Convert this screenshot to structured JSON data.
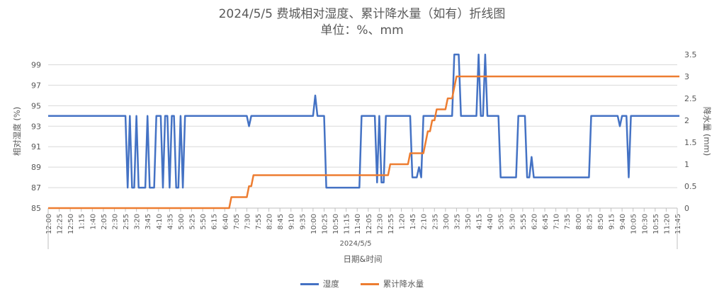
{
  "title": "2024/5/5 费城相对湿度、累计降水量（如有）折线图",
  "subtitle": "单位：%、mm",
  "legend": {
    "humidity": "湿度",
    "rain": "累计降水量"
  },
  "colors": {
    "humidity": "#4472C4",
    "rain": "#ED7D31",
    "grid": "#D9D9D9",
    "axis": "#BFBFBF",
    "text": "#595959"
  },
  "chart_data": {
    "type": "line",
    "xlabel": "日期&时间",
    "date_label": "2024/5/5",
    "ylabel_left": "相对湿度 (%)",
    "ylabel_right": "降水量 (mm)",
    "ylim_left": [
      85,
      100
    ],
    "yticks_left": [
      85,
      87,
      89,
      91,
      93,
      95,
      97,
      99
    ],
    "ylim_right": [
      0,
      3.5
    ],
    "yticks_right": [
      0,
      0.5,
      1,
      1.5,
      2,
      2.5,
      3,
      3.5
    ],
    "x_tick_labels": [
      "12:00",
      "12:25",
      "12:50",
      "1:15",
      "1:40",
      "2:05",
      "2:30",
      "2:55",
      "3:20",
      "3:45",
      "4:10",
      "4:35",
      "5:00",
      "5:25",
      "5:50",
      "6:15",
      "6:40",
      "7:05",
      "7:30",
      "7:55",
      "8:20",
      "8:45",
      "9:10",
      "9:35",
      "10:00",
      "10:25",
      "10:50",
      "11:15",
      "11:40",
      "12:05",
      "12:30",
      "12:55",
      "1:20",
      "1:45",
      "2:10",
      "2:35",
      "3:00",
      "3:25",
      "3:50",
      "4:15",
      "4:40",
      "5:05",
      "5:30",
      "5:55",
      "6:20",
      "6:45",
      "7:10",
      "7:35",
      "8:00",
      "8:25",
      "8:50",
      "9:15",
      "9:40",
      "10:05",
      "10:30",
      "10:55",
      "11:20",
      "11:45"
    ],
    "x_step_minutes": 5,
    "grid": true,
    "legend_position": "bottom",
    "series": [
      {
        "name": "湿度",
        "axis": "left",
        "points": [
          [
            0,
            94
          ],
          [
            35,
            94
          ],
          [
            36,
            87
          ],
          [
            37,
            94
          ],
          [
            38,
            87
          ],
          [
            39,
            87
          ],
          [
            40,
            94
          ],
          [
            41,
            87
          ],
          [
            42,
            87
          ],
          [
            43,
            87
          ],
          [
            44,
            87
          ],
          [
            45,
            94
          ],
          [
            46,
            87
          ],
          [
            47,
            87
          ],
          [
            48,
            87
          ],
          [
            49,
            94
          ],
          [
            50,
            94
          ],
          [
            51,
            94
          ],
          [
            52,
            87
          ],
          [
            53,
            94
          ],
          [
            54,
            94
          ],
          [
            55,
            87
          ],
          [
            56,
            94
          ],
          [
            57,
            94
          ],
          [
            58,
            87
          ],
          [
            59,
            87
          ],
          [
            60,
            94
          ],
          [
            61,
            87
          ],
          [
            62,
            94
          ],
          [
            63,
            94
          ],
          [
            64,
            94
          ],
          [
            90,
            94
          ],
          [
            91,
            93
          ],
          [
            92,
            94
          ],
          [
            93,
            94
          ],
          [
            120,
            94
          ],
          [
            121,
            96
          ],
          [
            122,
            94
          ],
          [
            123,
            94
          ],
          [
            124,
            94
          ],
          [
            125,
            94
          ],
          [
            126,
            87
          ],
          [
            127,
            87
          ],
          [
            128,
            87
          ],
          [
            129,
            87
          ],
          [
            130,
            87
          ],
          [
            131,
            87
          ],
          [
            140,
            87
          ],
          [
            141,
            87
          ],
          [
            142,
            94
          ],
          [
            143,
            94
          ],
          [
            148,
            94
          ],
          [
            149,
            87.5
          ],
          [
            150,
            94
          ],
          [
            151,
            87.5
          ],
          [
            152,
            87.5
          ],
          [
            153,
            94
          ],
          [
            154,
            94
          ],
          [
            162,
            94
          ],
          [
            163,
            94
          ],
          [
            164,
            94
          ],
          [
            165,
            88
          ],
          [
            166,
            88
          ],
          [
            167,
            88
          ],
          [
            168,
            89
          ],
          [
            169,
            88
          ],
          [
            170,
            94
          ],
          [
            171,
            94
          ],
          [
            180,
            94
          ],
          [
            181,
            94
          ],
          [
            182,
            94
          ],
          [
            183,
            94
          ],
          [
            184,
            100
          ],
          [
            185,
            100
          ],
          [
            186,
            100
          ],
          [
            187,
            94
          ],
          [
            188,
            94
          ],
          [
            189,
            94
          ],
          [
            190,
            94
          ],
          [
            191,
            94
          ],
          [
            192,
            94
          ],
          [
            193,
            94
          ],
          [
            194,
            94
          ],
          [
            195,
            100
          ],
          [
            196,
            94
          ],
          [
            197,
            94
          ],
          [
            198,
            100
          ],
          [
            199,
            94
          ],
          [
            200,
            94
          ],
          [
            201,
            94
          ],
          [
            202,
            94
          ],
          [
            203,
            94
          ],
          [
            204,
            94
          ],
          [
            205,
            88
          ],
          [
            206,
            88
          ],
          [
            207,
            88
          ],
          [
            208,
            88
          ],
          [
            209,
            88
          ],
          [
            210,
            88
          ],
          [
            211,
            88
          ],
          [
            212,
            88
          ],
          [
            213,
            94
          ],
          [
            214,
            94
          ],
          [
            215,
            94
          ],
          [
            216,
            94
          ],
          [
            217,
            88
          ],
          [
            218,
            88
          ],
          [
            219,
            90
          ],
          [
            220,
            88
          ],
          [
            221,
            88
          ],
          [
            222,
            88
          ],
          [
            230,
            88
          ],
          [
            240,
            88
          ],
          [
            245,
            88
          ],
          [
            246,
            94
          ],
          [
            247,
            94
          ],
          [
            255,
            94
          ],
          [
            258,
            94
          ],
          [
            259,
            93
          ],
          [
            260,
            94
          ],
          [
            261,
            94
          ],
          [
            262,
            94
          ],
          [
            263,
            88
          ],
          [
            264,
            94
          ],
          [
            265,
            94
          ],
          [
            275,
            94
          ],
          [
            286,
            94
          ]
        ]
      },
      {
        "name": "累计降水量",
        "axis": "right",
        "points": [
          [
            0,
            0
          ],
          [
            82,
            0
          ],
          [
            83,
            0.25
          ],
          [
            84,
            0.25
          ],
          [
            90,
            0.25
          ],
          [
            91,
            0.5
          ],
          [
            92,
            0.5
          ],
          [
            93,
            0.75
          ],
          [
            94,
            0.75
          ],
          [
            126,
            0.75
          ],
          [
            127,
            0.75
          ],
          [
            128,
            0.75
          ],
          [
            129,
            0.75
          ],
          [
            130,
            0.75
          ],
          [
            131,
            0.75
          ],
          [
            140,
            0.75
          ],
          [
            150,
            0.75
          ],
          [
            154,
            0.75
          ],
          [
            155,
            1.0
          ],
          [
            156,
            1.0
          ],
          [
            162,
            1.0
          ],
          [
            163,
            1.0
          ],
          [
            164,
            1.25
          ],
          [
            165,
            1.25
          ],
          [
            170,
            1.25
          ],
          [
            171,
            1.5
          ],
          [
            172,
            1.75
          ],
          [
            173,
            1.75
          ],
          [
            174,
            2.0
          ],
          [
            175,
            2.0
          ],
          [
            176,
            2.25
          ],
          [
            177,
            2.25
          ],
          [
            178,
            2.25
          ],
          [
            179,
            2.25
          ],
          [
            180,
            2.25
          ],
          [
            181,
            2.5
          ],
          [
            182,
            2.5
          ],
          [
            183,
            2.5
          ],
          [
            184,
            2.75
          ],
          [
            185,
            3.0
          ],
          [
            186,
            3.0
          ],
          [
            200,
            3.0
          ],
          [
            286,
            3.0
          ]
        ]
      }
    ]
  }
}
